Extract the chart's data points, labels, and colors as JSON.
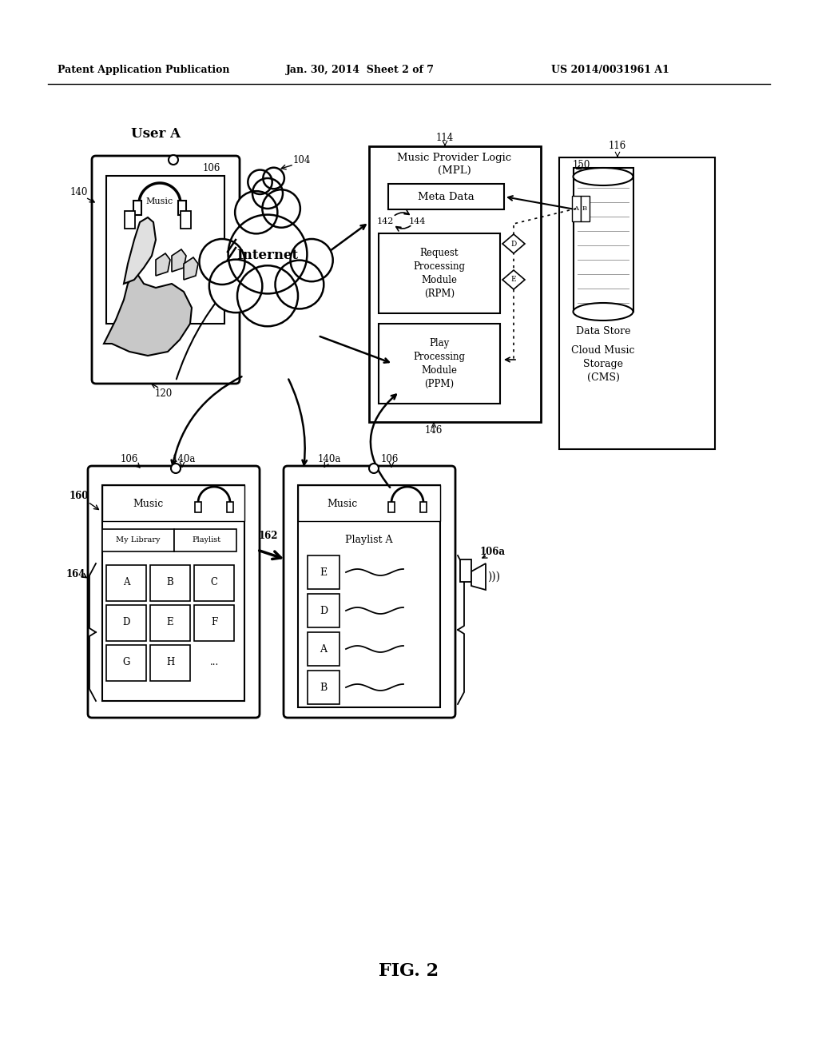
{
  "bg_color": "#ffffff",
  "header_left": "Patent Application Publication",
  "header_mid": "Jan. 30, 2014  Sheet 2 of 7",
  "header_right": "US 2014/0031961 A1",
  "footer": "FIG. 2",
  "title_user_a": "User A",
  "label_internet": "Internet",
  "label_mpl_title": "Music Provider Logic",
  "label_mpl_subtitle": "(MPL)",
  "label_metadata": "Meta Data",
  "label_rpm": "Request\nProcessing\nModule\n(RPM)",
  "label_ppm": "Play\nProcessing\nModule\n(PPM)",
  "label_datastore": "Data Store",
  "label_cms": "Cloud Music\nStorage\n(CMS)",
  "label_music": "Music",
  "label_playlist_a": "Playlist A",
  "ref_140": "140",
  "ref_106_top": "106",
  "ref_104": "104",
  "ref_114": "114",
  "ref_116": "116",
  "ref_150": "150",
  "ref_142": "142",
  "ref_144": "144",
  "ref_146": "146",
  "ref_120": "120",
  "ref_160": "160",
  "ref_162": "162",
  "ref_164": "164",
  "ref_106_bl": "106",
  "ref_140a_left": "140a",
  "ref_140a_right": "140a",
  "ref_106_br": "106",
  "ref_106a": "106a"
}
